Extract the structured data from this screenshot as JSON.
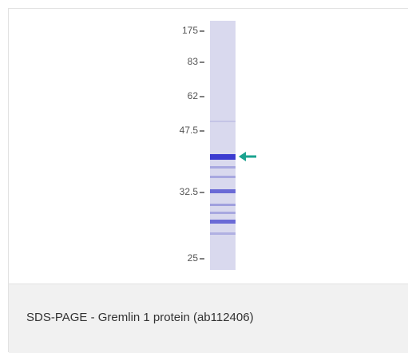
{
  "figure": {
    "markers": [
      {
        "label": "175"
      },
      {
        "label": "83"
      },
      {
        "label": "62"
      },
      {
        "label": "47.5"
      },
      {
        "label": "32.5"
      },
      {
        "label": "25"
      }
    ],
    "caption": "SDS-PAGE - Gremlin 1 protein (ab112406)"
  }
}
